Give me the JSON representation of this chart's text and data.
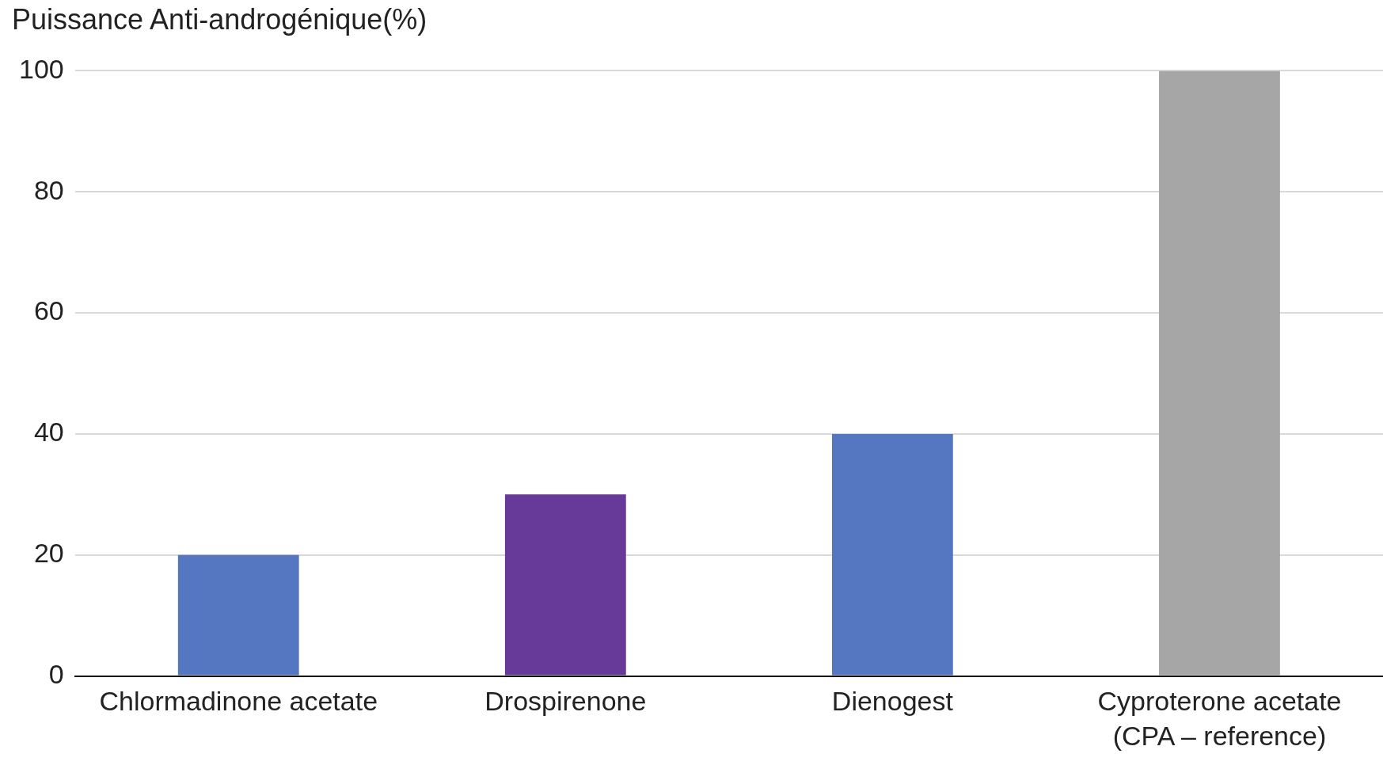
{
  "chart_data": {
    "type": "bar",
    "ylabel": "Puissance Anti-androgénique(%)",
    "categories": [
      "Chlormadinone acetate",
      "Drospirenone",
      "Dienogest",
      "Cyproterone acetate (CPA – reference)"
    ],
    "values": [
      20,
      30,
      40,
      100
    ],
    "colors": [
      "#5577c1",
      "#673a9a",
      "#5577c1",
      "#a6a6a6"
    ],
    "ylim": [
      0,
      100
    ],
    "yticks": [
      0,
      20,
      40,
      60,
      80,
      100
    ],
    "grid": "y",
    "legend": false
  }
}
